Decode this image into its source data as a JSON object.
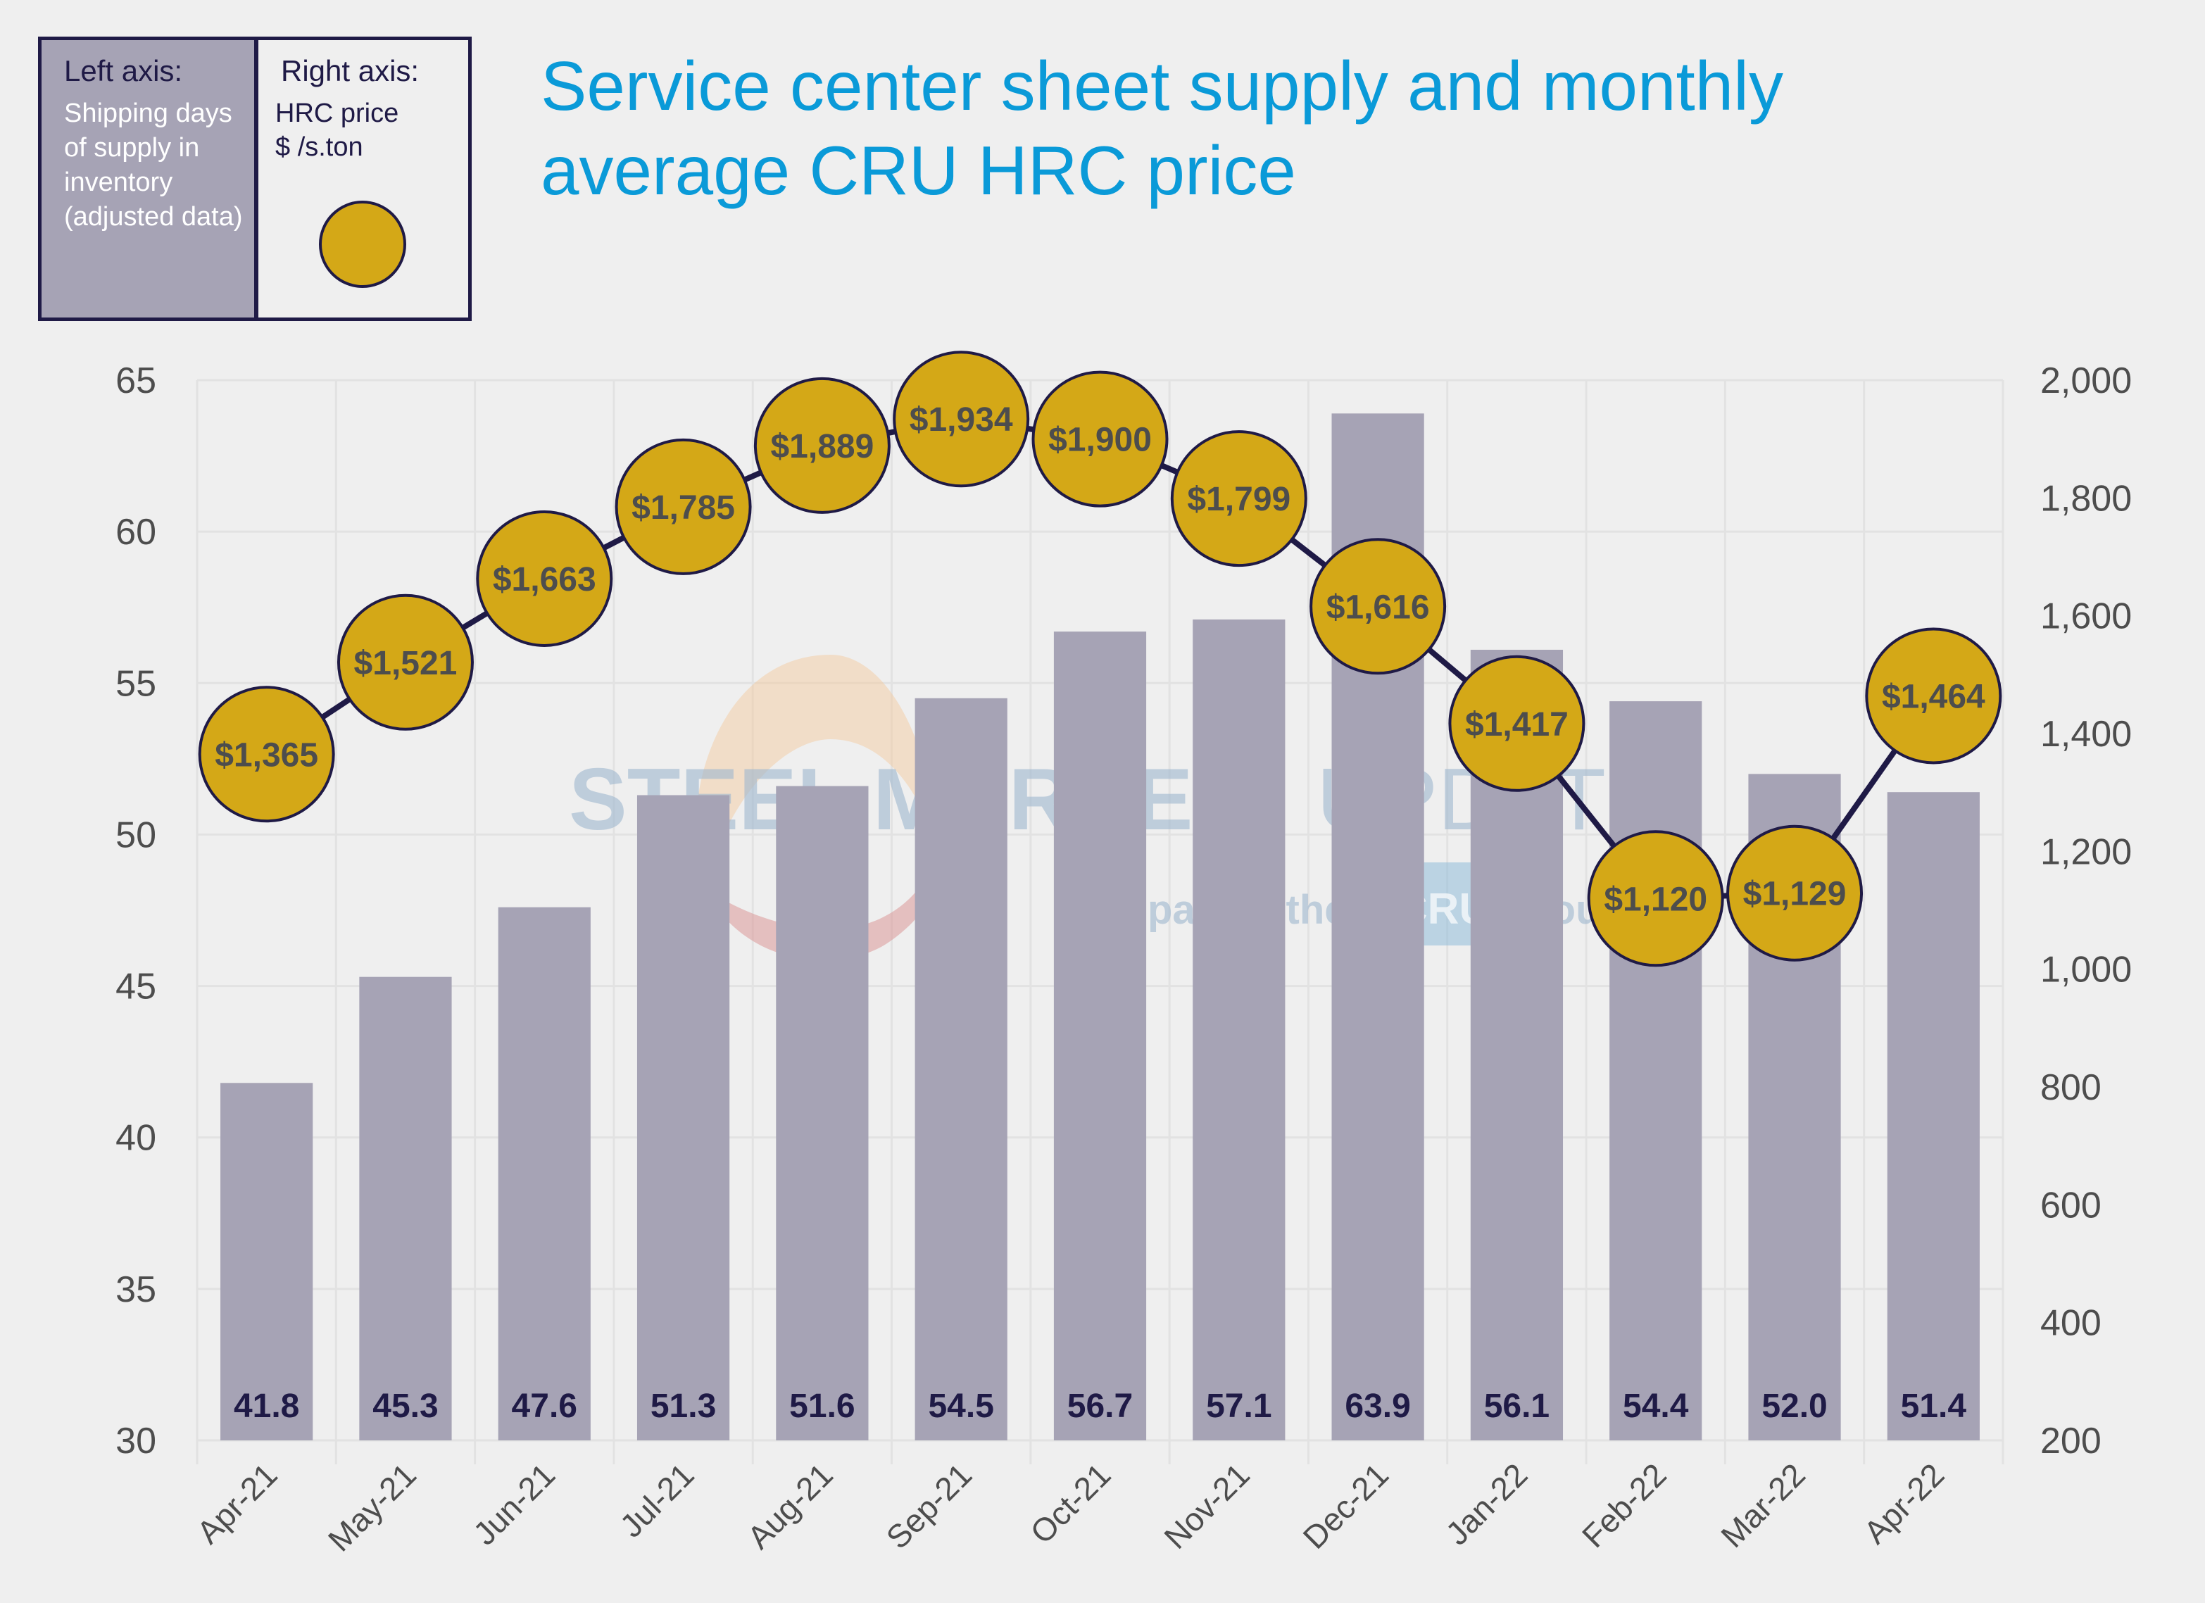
{
  "title": "Service center sheet supply and monthly average CRU HRC price",
  "title_lines": [
    "Service center sheet supply and monthly",
    "average CRU HRC price"
  ],
  "legend": {
    "left": {
      "heading": "Left axis:",
      "body": "Shipping days of supply in inventory (adjusted data)",
      "color": "#a6a3b5"
    },
    "right": {
      "heading": "Right axis:",
      "body_lines": [
        "HRC price",
        "$ /s.ton"
      ],
      "color": "#d4a817"
    }
  },
  "watermark": {
    "brand": "STEEL MARKET UPDATE",
    "brand_bold": "STEEL MARKET",
    "brand_light": "UPDATE",
    "sub_prefix": "part of the",
    "sub_logo": "CRU",
    "sub_suffix": "Group"
  },
  "colors": {
    "bar": "#a6a3b5",
    "line": "#1f1a46",
    "bubble": "#d4a817",
    "title": "#0a9ad8",
    "bar_label": "#1f1a46",
    "price_label": "#4d4d4d",
    "background": "#efefef",
    "grid": "#e2e2e2"
  },
  "chart_data": {
    "type": "bar",
    "title": "Service center sheet supply and monthly average CRU HRC price",
    "xlabel": "",
    "categories": [
      "Apr-21",
      "May-21",
      "Jun-21",
      "Jul-21",
      "Aug-21",
      "Sep-21",
      "Oct-21",
      "Nov-21",
      "Dec-21",
      "Jan-22",
      "Feb-22",
      "Mar-22",
      "Apr-22"
    ],
    "series": [
      {
        "name": "Shipping days of supply in inventory (adjusted data)",
        "type": "bar",
        "axis": "left",
        "values": [
          41.8,
          45.3,
          47.6,
          51.3,
          51.6,
          54.5,
          56.7,
          57.1,
          63.9,
          56.1,
          54.4,
          52.0,
          51.4
        ],
        "labels": [
          "41.8",
          "45.3",
          "47.6",
          "51.3",
          "51.6",
          "54.5",
          "56.7",
          "57.1",
          "63.9",
          "56.1",
          "54.4",
          "52.0",
          "51.4"
        ]
      },
      {
        "name": "HRC price $ /s.ton",
        "type": "line",
        "axis": "right",
        "values": [
          1365,
          1521,
          1663,
          1785,
          1889,
          1934,
          1900,
          1799,
          1616,
          1417,
          1120,
          1129,
          1464
        ],
        "labels": [
          "$1,365",
          "$1,521",
          "$1,663",
          "$1,785",
          "$1,889",
          "$1,934",
          "$1,900",
          "$1,799",
          "$1,616",
          "$1,417",
          "$1,120",
          "$1,129",
          "$1,464"
        ]
      }
    ],
    "y_left": {
      "label": "Shipping days of supply in inventory (adjusted data)",
      "lim": [
        30,
        65
      ],
      "ticks": [
        30,
        35,
        40,
        45,
        50,
        55,
        60,
        65
      ],
      "tick_labels": [
        "30",
        "35",
        "40",
        "45",
        "50",
        "55",
        "60",
        "65"
      ]
    },
    "y_right": {
      "label": "HRC price $ /s.ton",
      "lim": [
        200,
        2000
      ],
      "ticks": [
        200,
        400,
        600,
        800,
        1000,
        1200,
        1400,
        1600,
        1800,
        2000
      ],
      "tick_labels": [
        "200",
        "400",
        "600",
        "800",
        "1,000",
        "1,200",
        "1,400",
        "1,600",
        "1,800",
        "2,000"
      ]
    },
    "grid": true,
    "legend_position": "top-left"
  }
}
